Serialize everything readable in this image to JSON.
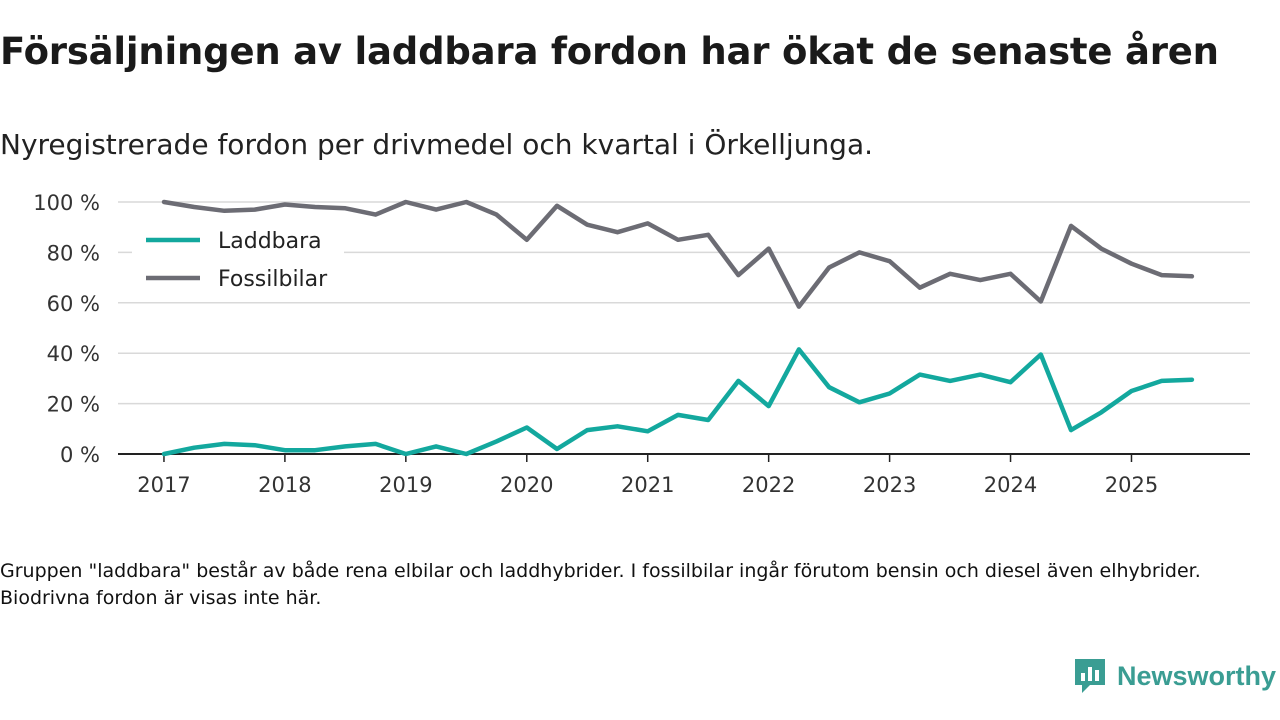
{
  "title": "Försäljningen av laddbara fordon har ökat de senaste åren",
  "subtitle": "Nyregistrerade fordon per drivmedel och kvartal i Örkelljunga.",
  "footnote": "Gruppen \"laddbara\" består av både rena elbilar och laddhybrider. I fossilbilar ingår förutom bensin och diesel även elhybrider. Biodrivna fordon är visas inte här.",
  "brand": {
    "name": "Newsworthy",
    "icon": "newsworthy-logo-icon"
  },
  "colors": {
    "laddbara": "#13a89e",
    "fossil": "#6c6c74",
    "grid": "#d9d9d9",
    "axis": "#222222"
  },
  "chart_data": {
    "type": "line",
    "x": [
      2017,
      2017.25,
      2017.5,
      2017.75,
      2018,
      2018.25,
      2018.5,
      2018.75,
      2019,
      2019.25,
      2019.5,
      2019.75,
      2020,
      2020.25,
      2020.5,
      2020.75,
      2021,
      2021.25,
      2021.5,
      2021.75,
      2022,
      2022.25,
      2022.5,
      2022.75,
      2023,
      2023.25,
      2023.5,
      2023.75,
      2024,
      2024.25,
      2024.5,
      2024.75,
      2025,
      2025.25,
      2025.5
    ],
    "series": [
      {
        "name": "Laddbara",
        "color": "#13a89e",
        "values": [
          0,
          2.5,
          4,
          3.5,
          1.5,
          1.5,
          3,
          4,
          0,
          3,
          0,
          5,
          10.5,
          2,
          9.5,
          11,
          9,
          15.5,
          13.5,
          29,
          19,
          41.5,
          26.5,
          20.5,
          24,
          31.5,
          29,
          31.5,
          28.5,
          39.5,
          9.5,
          16.5,
          25,
          29,
          29.5
        ]
      },
      {
        "name": "Fossilbilar",
        "color": "#6c6c74",
        "values": [
          100,
          98,
          96.5,
          97,
          99,
          98,
          97.5,
          95,
          100,
          97,
          100,
          95,
          85,
          98.5,
          91,
          88,
          91.5,
          85,
          87,
          71,
          81.5,
          58.5,
          74,
          80,
          76.5,
          66,
          71.5,
          69,
          71.5,
          60.5,
          90.5,
          81.5,
          75.5,
          71,
          70.5
        ]
      }
    ],
    "xticks": [
      2017,
      2018,
      2019,
      2020,
      2021,
      2022,
      2023,
      2024,
      2025
    ],
    "xtick_labels": [
      "2017",
      "2018",
      "2019",
      "2020",
      "2021",
      "2022",
      "2023",
      "2024",
      "2025"
    ],
    "yticks": [
      0,
      20,
      40,
      60,
      80,
      100
    ],
    "ytick_labels": [
      "0 %",
      "20 %",
      "40 %",
      "60 %",
      "80 %",
      "100 %"
    ],
    "ylim": [
      0,
      100
    ],
    "xlim": [
      2016.62,
      2025.98
    ],
    "legend_position": "top-left",
    "grid": true
  }
}
